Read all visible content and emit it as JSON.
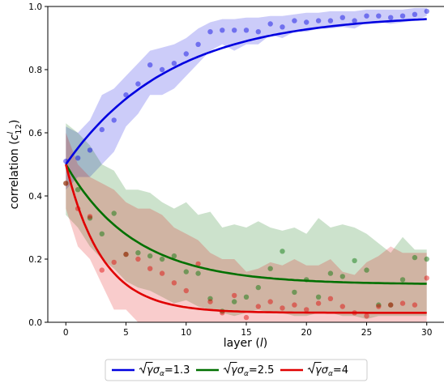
{
  "chart_data": {
    "type": "line",
    "xlabel": "layer (l)",
    "ylabel": "correlation (c^l_12)",
    "xlim": [
      -1.5,
      31.5
    ],
    "ylim": [
      0.0,
      1.0
    ],
    "xticks": [
      0,
      5,
      10,
      15,
      20,
      25,
      30
    ],
    "yticks": [
      0.0,
      0.2,
      0.4,
      0.6,
      0.8,
      1.0
    ],
    "grid": false,
    "legend_position": "bottom-center, below plot",
    "series": [
      {
        "name": "√γσα=1.3",
        "color": "#0000e0",
        "fit_start": 0.5,
        "fit_end": 0.975,
        "fit_rate": 0.115,
        "points": [
          [
            0,
            0.51
          ],
          [
            1,
            0.52
          ],
          [
            2,
            0.545
          ],
          [
            3,
            0.61
          ],
          [
            4,
            0.64
          ],
          [
            5,
            0.72
          ],
          [
            6,
            0.755
          ],
          [
            7,
            0.815
          ],
          [
            8,
            0.8
          ],
          [
            9,
            0.82
          ],
          [
            10,
            0.85
          ],
          [
            11,
            0.88
          ],
          [
            12,
            0.92
          ],
          [
            13,
            0.925
          ],
          [
            14,
            0.925
          ],
          [
            15,
            0.925
          ],
          [
            16,
            0.92
          ],
          [
            17,
            0.945
          ],
          [
            18,
            0.935
          ],
          [
            19,
            0.955
          ],
          [
            20,
            0.95
          ],
          [
            21,
            0.955
          ],
          [
            22,
            0.955
          ],
          [
            23,
            0.965
          ],
          [
            24,
            0.955
          ],
          [
            25,
            0.97
          ],
          [
            26,
            0.97
          ],
          [
            27,
            0.965
          ],
          [
            28,
            0.97
          ],
          [
            29,
            0.975
          ],
          [
            30,
            0.985
          ]
        ],
        "band_upper": [
          [
            0,
            0.62
          ],
          [
            1,
            0.6
          ],
          [
            2,
            0.64
          ],
          [
            3,
            0.72
          ],
          [
            4,
            0.74
          ],
          [
            5,
            0.78
          ],
          [
            6,
            0.82
          ],
          [
            7,
            0.86
          ],
          [
            8,
            0.87
          ],
          [
            9,
            0.88
          ],
          [
            10,
            0.9
          ],
          [
            11,
            0.93
          ],
          [
            12,
            0.95
          ],
          [
            13,
            0.96
          ],
          [
            14,
            0.96
          ],
          [
            15,
            0.965
          ],
          [
            16,
            0.965
          ],
          [
            17,
            0.97
          ],
          [
            18,
            0.97
          ],
          [
            19,
            0.975
          ],
          [
            20,
            0.98
          ],
          [
            21,
            0.98
          ],
          [
            22,
            0.985
          ],
          [
            23,
            0.985
          ],
          [
            24,
            0.985
          ],
          [
            25,
            0.99
          ],
          [
            26,
            0.99
          ],
          [
            27,
            0.99
          ],
          [
            28,
            0.99
          ],
          [
            29,
            0.995
          ],
          [
            30,
            0.995
          ]
        ],
        "band_lower": [
          [
            0,
            0.42
          ],
          [
            1,
            0.46
          ],
          [
            2,
            0.46
          ],
          [
            3,
            0.5
          ],
          [
            4,
            0.54
          ],
          [
            5,
            0.62
          ],
          [
            6,
            0.66
          ],
          [
            7,
            0.72
          ],
          [
            8,
            0.72
          ],
          [
            9,
            0.74
          ],
          [
            10,
            0.78
          ],
          [
            11,
            0.82
          ],
          [
            12,
            0.86
          ],
          [
            13,
            0.88
          ],
          [
            14,
            0.86
          ],
          [
            15,
            0.88
          ],
          [
            16,
            0.88
          ],
          [
            17,
            0.91
          ],
          [
            18,
            0.9
          ],
          [
            19,
            0.92
          ],
          [
            20,
            0.92
          ],
          [
            21,
            0.93
          ],
          [
            22,
            0.93
          ],
          [
            23,
            0.935
          ],
          [
            24,
            0.93
          ],
          [
            25,
            0.95
          ],
          [
            26,
            0.95
          ],
          [
            27,
            0.945
          ],
          [
            28,
            0.95
          ],
          [
            29,
            0.955
          ],
          [
            30,
            0.97
          ]
        ]
      },
      {
        "name": "√γσα=2.5",
        "color": "#007000",
        "fit_start": 0.5,
        "fit_end": 0.12,
        "fit_rate": 0.175,
        "points": [
          [
            0,
            0.44
          ],
          [
            1,
            0.42
          ],
          [
            2,
            0.33
          ],
          [
            3,
            0.28
          ],
          [
            4,
            0.345
          ],
          [
            5,
            0.215
          ],
          [
            6,
            0.22
          ],
          [
            7,
            0.21
          ],
          [
            8,
            0.2
          ],
          [
            9,
            0.21
          ],
          [
            10,
            0.16
          ],
          [
            11,
            0.155
          ],
          [
            12,
            0.075
          ],
          [
            13,
            0.035
          ],
          [
            14,
            0.065
          ],
          [
            15,
            0.08
          ],
          [
            16,
            0.11
          ],
          [
            17,
            0.17
          ],
          [
            18,
            0.225
          ],
          [
            19,
            0.095
          ],
          [
            20,
            0.135
          ],
          [
            21,
            0.08
          ],
          [
            22,
            0.155
          ],
          [
            23,
            0.145
          ],
          [
            24,
            0.195
          ],
          [
            25,
            0.165
          ],
          [
            26,
            0.055
          ],
          [
            27,
            0.055
          ],
          [
            28,
            0.135
          ],
          [
            29,
            0.205
          ],
          [
            30,
            0.2
          ]
        ],
        "band_upper": [
          [
            0,
            0.63
          ],
          [
            1,
            0.6
          ],
          [
            2,
            0.56
          ],
          [
            3,
            0.5
          ],
          [
            4,
            0.48
          ],
          [
            5,
            0.42
          ],
          [
            6,
            0.42
          ],
          [
            7,
            0.41
          ],
          [
            8,
            0.38
          ],
          [
            9,
            0.36
          ],
          [
            10,
            0.38
          ],
          [
            11,
            0.34
          ],
          [
            12,
            0.35
          ],
          [
            13,
            0.3
          ],
          [
            14,
            0.31
          ],
          [
            15,
            0.3
          ],
          [
            16,
            0.32
          ],
          [
            17,
            0.3
          ],
          [
            18,
            0.29
          ],
          [
            19,
            0.3
          ],
          [
            20,
            0.28
          ],
          [
            21,
            0.33
          ],
          [
            22,
            0.3
          ],
          [
            23,
            0.31
          ],
          [
            24,
            0.3
          ],
          [
            25,
            0.28
          ],
          [
            26,
            0.25
          ],
          [
            27,
            0.22
          ],
          [
            28,
            0.27
          ],
          [
            29,
            0.23
          ],
          [
            30,
            0.23
          ]
        ],
        "band_lower": [
          [
            0,
            0.34
          ],
          [
            1,
            0.3
          ],
          [
            2,
            0.24
          ],
          [
            3,
            0.2
          ],
          [
            4,
            0.17
          ],
          [
            5,
            0.13
          ],
          [
            6,
            0.11
          ],
          [
            7,
            0.1
          ],
          [
            8,
            0.08
          ],
          [
            9,
            0.06
          ],
          [
            10,
            0.07
          ],
          [
            11,
            0.05
          ],
          [
            12,
            0.04
          ],
          [
            13,
            0.03
          ],
          [
            14,
            0.02
          ],
          [
            15,
            0.03
          ],
          [
            16,
            0.04
          ],
          [
            17,
            0.03
          ],
          [
            18,
            0.03
          ],
          [
            19,
            0.02
          ],
          [
            20,
            0.02
          ],
          [
            21,
            0.03
          ],
          [
            22,
            0.03
          ],
          [
            23,
            0.02
          ],
          [
            24,
            0.02
          ],
          [
            25,
            0.01
          ],
          [
            26,
            0.02
          ],
          [
            27,
            0.02
          ],
          [
            28,
            0.02
          ],
          [
            29,
            0.02
          ],
          [
            30,
            0.02
          ]
        ]
      },
      {
        "name": "√γσα=4",
        "color": "#e00000",
        "fit_start": 0.5,
        "fit_end": 0.03,
        "fit_rate": 0.33,
        "points": [
          [
            0,
            0.44
          ],
          [
            1,
            0.36
          ],
          [
            2,
            0.335
          ],
          [
            3,
            0.165
          ],
          [
            4,
            0.19
          ],
          [
            5,
            0.215
          ],
          [
            6,
            0.2
          ],
          [
            7,
            0.17
          ],
          [
            8,
            0.155
          ],
          [
            9,
            0.125
          ],
          [
            10,
            0.1
          ],
          [
            11,
            0.185
          ],
          [
            12,
            0.065
          ],
          [
            13,
            0.03
          ],
          [
            14,
            0.085
          ],
          [
            15,
            0.015
          ],
          [
            16,
            0.05
          ],
          [
            17,
            0.065
          ],
          [
            18,
            0.045
          ],
          [
            19,
            0.055
          ],
          [
            20,
            0.04
          ],
          [
            21,
            0.06
          ],
          [
            22,
            0.075
          ],
          [
            23,
            0.05
          ],
          [
            24,
            0.03
          ],
          [
            25,
            0.02
          ],
          [
            26,
            0.05
          ],
          [
            27,
            0.055
          ],
          [
            28,
            0.06
          ],
          [
            29,
            0.055
          ],
          [
            30,
            0.14
          ]
        ],
        "band_upper": [
          [
            0,
            0.6
          ],
          [
            1,
            0.5
          ],
          [
            2,
            0.46
          ],
          [
            3,
            0.44
          ],
          [
            4,
            0.42
          ],
          [
            5,
            0.38
          ],
          [
            6,
            0.36
          ],
          [
            7,
            0.36
          ],
          [
            8,
            0.34
          ],
          [
            9,
            0.3
          ],
          [
            10,
            0.28
          ],
          [
            11,
            0.26
          ],
          [
            12,
            0.22
          ],
          [
            13,
            0.2
          ],
          [
            14,
            0.2
          ],
          [
            15,
            0.16
          ],
          [
            16,
            0.17
          ],
          [
            17,
            0.19
          ],
          [
            18,
            0.18
          ],
          [
            19,
            0.2
          ],
          [
            20,
            0.18
          ],
          [
            21,
            0.18
          ],
          [
            22,
            0.2
          ],
          [
            23,
            0.16
          ],
          [
            24,
            0.15
          ],
          [
            25,
            0.19
          ],
          [
            26,
            0.21
          ],
          [
            27,
            0.24
          ],
          [
            28,
            0.22
          ],
          [
            29,
            0.22
          ],
          [
            30,
            0.22
          ]
        ],
        "band_lower": [
          [
            0,
            0.36
          ],
          [
            1,
            0.24
          ],
          [
            2,
            0.2
          ],
          [
            3,
            0.12
          ],
          [
            4,
            0.04
          ],
          [
            5,
            0.04
          ],
          [
            6,
            0.0
          ],
          [
            7,
            0.0
          ],
          [
            8,
            0.0
          ],
          [
            9,
            0.0
          ],
          [
            10,
            0.0
          ],
          [
            11,
            0.0
          ],
          [
            12,
            0.0
          ],
          [
            13,
            0.0
          ],
          [
            14,
            0.0
          ],
          [
            15,
            0.0
          ],
          [
            16,
            0.0
          ],
          [
            17,
            0.0
          ],
          [
            18,
            0.0
          ],
          [
            19,
            0.0
          ],
          [
            20,
            0.0
          ],
          [
            21,
            0.0
          ],
          [
            22,
            0.0
          ],
          [
            23,
            0.0
          ],
          [
            24,
            0.0
          ],
          [
            25,
            0.0
          ],
          [
            26,
            0.0
          ],
          [
            27,
            0.0
          ],
          [
            28,
            0.0
          ],
          [
            29,
            0.0
          ],
          [
            30,
            0.0
          ]
        ]
      }
    ]
  },
  "labels": {
    "xlabel_text": "layer (",
    "xlabel_var": "l",
    "xlabel_close": ")",
    "ylabel_text": "correlation (",
    "ylabel_var": "c",
    "ylabel_sup": "l",
    "ylabel_sub": "12",
    "ylabel_close": ")"
  },
  "legend": [
    {
      "value": "1.3",
      "color": "#0000e0"
    },
    {
      "value": "2.5",
      "color": "#007000"
    },
    {
      "value": "4",
      "color": "#e00000"
    }
  ]
}
